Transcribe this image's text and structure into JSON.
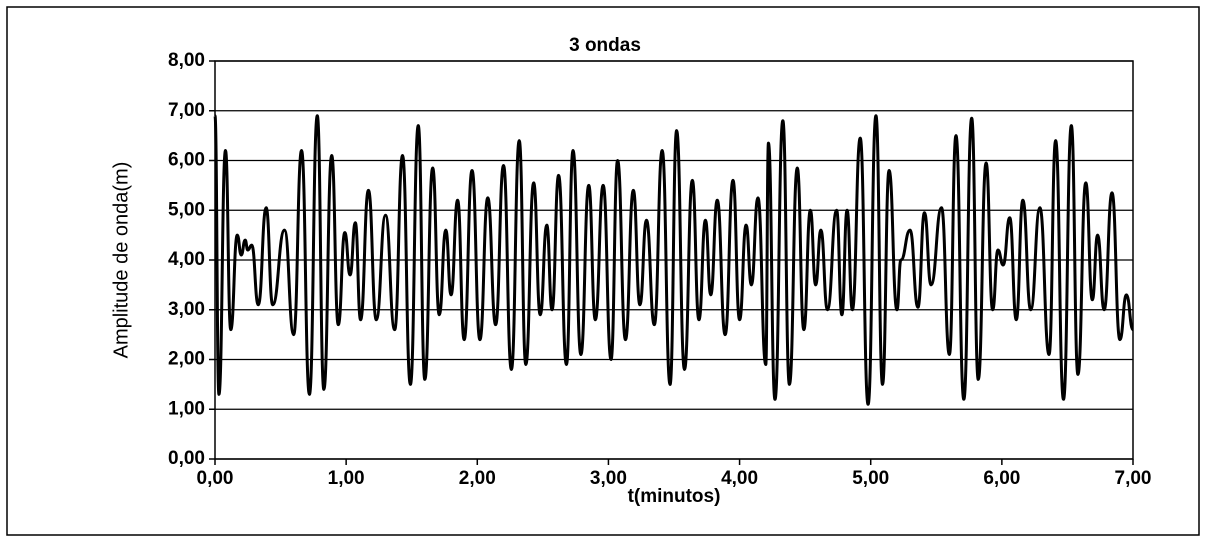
{
  "chart_data": {
    "type": "line",
    "title": "3 ondas",
    "x_label": "t(minutos)",
    "y_label": "Amplitude de onda(m)",
    "color": "#000000",
    "grid": true,
    "xlim": [
      0,
      7
    ],
    "ylim": [
      0,
      8
    ],
    "xticks": [
      {
        "value": 0,
        "label": "0,00"
      },
      {
        "value": 1,
        "label": "1,00"
      },
      {
        "value": 2,
        "label": "2,00"
      },
      {
        "value": 3,
        "label": "3,00"
      },
      {
        "value": 4,
        "label": "4,00"
      },
      {
        "value": 5,
        "label": "5,00"
      },
      {
        "value": 6,
        "label": "6,00"
      },
      {
        "value": 7,
        "label": "7,00"
      }
    ],
    "yticks": [
      {
        "value": 0,
        "label": "0,00"
      },
      {
        "value": 1,
        "label": "1,00"
      },
      {
        "value": 2,
        "label": "2,00"
      },
      {
        "value": 3,
        "label": "3,00"
      },
      {
        "value": 4,
        "label": "4,00"
      },
      {
        "value": 5,
        "label": "5,00"
      },
      {
        "value": 6,
        "label": "6,00"
      },
      {
        "value": 7,
        "label": "7,00"
      },
      {
        "value": 8,
        "label": "8,00"
      }
    ],
    "x": [
      0,
      0.03,
      0.08,
      0.12,
      0.17,
      0.2,
      0.23,
      0.25,
      0.28,
      0.33,
      0.39,
      0.44,
      0.53,
      0.6,
      0.66,
      0.72,
      0.78,
      0.83,
      0.89,
      0.94,
      0.99,
      1.03,
      1.07,
      1.11,
      1.17,
      1.23,
      1.3,
      1.37,
      1.43,
      1.49,
      1.55,
      1.6,
      1.66,
      1.71,
      1.76,
      1.8,
      1.85,
      1.9,
      1.96,
      2.02,
      2.08,
      2.14,
      2.2,
      2.26,
      2.32,
      2.37,
      2.43,
      2.48,
      2.53,
      2.57,
      2.62,
      2.68,
      2.73,
      2.79,
      2.85,
      2.9,
      2.96,
      3.02,
      3.07,
      3.13,
      3.19,
      3.24,
      3.29,
      3.35,
      3.41,
      3.47,
      3.52,
      3.58,
      3.64,
      3.69,
      3.74,
      3.78,
      3.83,
      3.89,
      3.95,
      4.0,
      4.05,
      4.09,
      4.14,
      4.2,
      4.22,
      4.27,
      4.33,
      4.38,
      4.44,
      4.49,
      4.54,
      4.58,
      4.62,
      4.67,
      4.74,
      4.78,
      4.82,
      4.86,
      4.92,
      4.98,
      5.04,
      5.09,
      5.14,
      5.2,
      5.23,
      5.3,
      5.36,
      5.41,
      5.46,
      5.54,
      5.6,
      5.65,
      5.71,
      5.77,
      5.82,
      5.88,
      5.93,
      5.97,
      6.01,
      6.06,
      6.11,
      6.16,
      6.22,
      6.29,
      6.36,
      6.41,
      6.47,
      6.53,
      6.58,
      6.64,
      6.69,
      6.73,
      6.78,
      6.84,
      6.9,
      6.95,
      7.0
    ],
    "values": [
      6.9,
      1.3,
      6.2,
      2.6,
      4.5,
      4.1,
      4.4,
      4.2,
      4.3,
      3.1,
      5.05,
      3.1,
      4.6,
      2.5,
      6.2,
      1.3,
      6.9,
      1.4,
      6.1,
      2.7,
      4.55,
      3.7,
      4.75,
      2.8,
      5.4,
      2.8,
      4.9,
      2.6,
      6.1,
      1.5,
      6.7,
      1.6,
      5.85,
      2.9,
      4.6,
      3.3,
      5.2,
      2.4,
      5.8,
      2.4,
      5.25,
      2.7,
      5.9,
      1.8,
      6.4,
      1.9,
      5.55,
      2.9,
      4.7,
      3.0,
      5.7,
      1.9,
      6.2,
      2.1,
      5.5,
      2.8,
      5.5,
      2.0,
      6.0,
      2.4,
      5.4,
      3.1,
      4.8,
      2.7,
      6.2,
      1.5,
      6.6,
      1.8,
      5.6,
      2.8,
      4.8,
      3.3,
      5.2,
      2.5,
      5.6,
      2.8,
      4.7,
      3.5,
      5.25,
      1.9,
      6.35,
      1.2,
      6.8,
      1.5,
      5.85,
      2.6,
      5.0,
      3.5,
      4.6,
      3.0,
      5.0,
      2.9,
      5.0,
      3.0,
      6.45,
      1.1,
      6.9,
      1.5,
      5.8,
      3.0,
      4.0,
      4.6,
      3.05,
      4.95,
      3.5,
      5.05,
      2.1,
      6.5,
      1.2,
      6.85,
      1.6,
      5.95,
      3.0,
      4.2,
      3.9,
      4.85,
      2.8,
      5.2,
      3.0,
      5.05,
      2.1,
      6.4,
      1.2,
      6.7,
      1.7,
      5.55,
      3.2,
      4.5,
      3.0,
      5.35,
      2.4,
      3.3,
      2.6
    ]
  }
}
